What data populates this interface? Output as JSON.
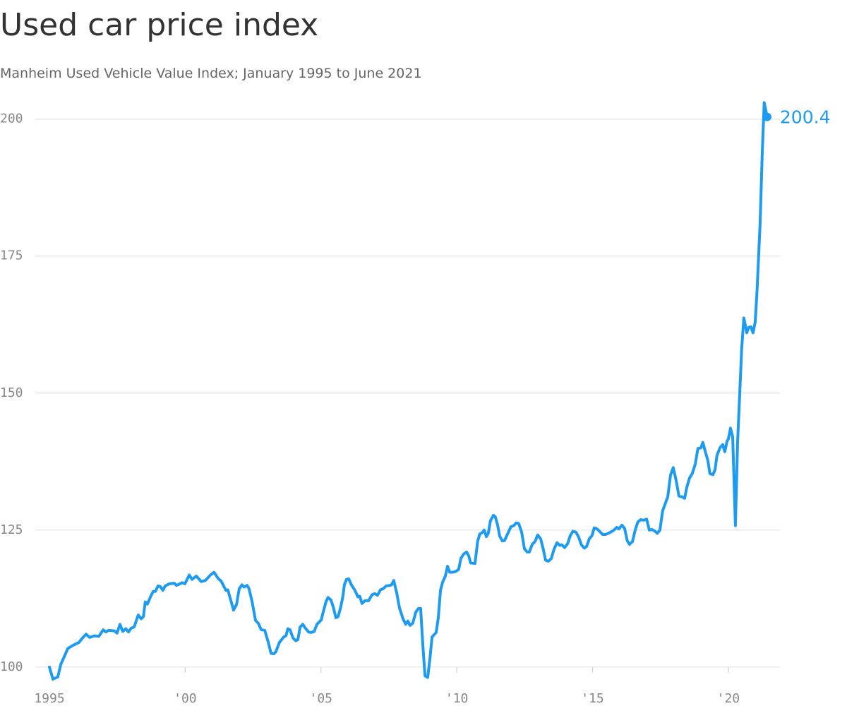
{
  "chart_data": {
    "type": "line",
    "title": "Used car price index",
    "subtitle": "Manheim Used Vehicle Value Index; January 1995 to June 2021",
    "color": "#1d9bf0",
    "grid": true,
    "xlim": [
      1994.48,
      2021.9
    ],
    "ylim": [
      97.4,
      203.7
    ],
    "yticks": [
      100,
      125,
      150,
      175,
      200
    ],
    "xticks": [
      1995,
      {
        "value": 2000,
        "label": "'00"
      },
      {
        "value": 2005,
        "label": "'05"
      },
      {
        "value": 2010,
        "label": "'10"
      },
      {
        "value": 2015,
        "label": "'15"
      },
      {
        "value": 2020,
        "label": "'20"
      }
    ],
    "x": [
      1995.0,
      1995.13,
      1995.31,
      1995.42,
      1995.6,
      1995.68,
      1995.88,
      1996.09,
      1996.2,
      1996.35,
      1996.48,
      1996.66,
      1996.82,
      1996.98,
      1997.08,
      1997.18,
      1997.39,
      1997.49,
      1997.6,
      1997.7,
      1997.81,
      1997.91,
      1998.01,
      1998.12,
      1998.27,
      1998.38,
      1998.46,
      1998.53,
      1998.61,
      1998.72,
      1998.82,
      1998.9,
      1999.0,
      1999.08,
      1999.18,
      1999.26,
      1999.42,
      1999.6,
      1999.68,
      1999.89,
      1999.99,
      2000.15,
      2000.25,
      2000.41,
      2000.59,
      2000.74,
      2000.93,
      2001.06,
      2001.21,
      2001.32,
      2001.5,
      2001.57,
      2001.78,
      2001.89,
      2001.99,
      2002.09,
      2002.17,
      2002.28,
      2002.35,
      2002.46,
      2002.59,
      2002.69,
      2002.8,
      2002.93,
      2003.06,
      2003.16,
      2003.26,
      2003.34,
      2003.47,
      2003.63,
      2003.71,
      2003.78,
      2003.86,
      2003.97,
      2004.07,
      2004.15,
      2004.23,
      2004.33,
      2004.41,
      2004.54,
      2004.64,
      2004.75,
      2004.85,
      2005.01,
      2005.08,
      2005.19,
      2005.26,
      2005.37,
      2005.45,
      2005.55,
      2005.63,
      2005.73,
      2005.81,
      2005.86,
      2005.94,
      2006.02,
      2006.12,
      2006.25,
      2006.36,
      2006.43,
      2006.51,
      2006.62,
      2006.75,
      2006.88,
      2006.98,
      2007.08,
      2007.19,
      2007.29,
      2007.4,
      2007.53,
      2007.6,
      2007.68,
      2007.79,
      2007.89,
      2008.02,
      2008.12,
      2008.2,
      2008.28,
      2008.38,
      2008.49,
      2008.59,
      2008.67,
      2008.75,
      2008.83,
      2008.93,
      2009.01,
      2009.09,
      2009.24,
      2009.32,
      2009.4,
      2009.48,
      2009.58,
      2009.66,
      2009.74,
      2009.84,
      2009.94,
      2010.07,
      2010.15,
      2010.25,
      2010.36,
      2010.44,
      2010.51,
      2010.67,
      2010.77,
      2010.85,
      2010.93,
      2011.01,
      2011.09,
      2011.16,
      2011.24,
      2011.35,
      2011.42,
      2011.5,
      2011.58,
      2011.68,
      2011.76,
      2011.89,
      2011.99,
      2012.1,
      2012.18,
      2012.28,
      2012.39,
      2012.49,
      2012.59,
      2012.67,
      2012.78,
      2012.88,
      2012.98,
      2013.09,
      2013.19,
      2013.27,
      2013.37,
      2013.48,
      2013.58,
      2013.69,
      2013.79,
      2013.87,
      2013.97,
      2014.08,
      2014.18,
      2014.28,
      2014.39,
      2014.49,
      2014.59,
      2014.7,
      2014.78,
      2014.88,
      2014.98,
      2015.06,
      2015.17,
      2015.27,
      2015.37,
      2015.48,
      2015.58,
      2015.69,
      2015.79,
      2015.89,
      2015.97,
      2016.08,
      2016.18,
      2016.28,
      2016.36,
      2016.47,
      2016.57,
      2016.67,
      2016.78,
      2016.88,
      2016.99,
      2017.09,
      2017.19,
      2017.3,
      2017.38,
      2017.48,
      2017.58,
      2017.69,
      2017.77,
      2017.87,
      2017.97,
      2018.08,
      2018.18,
      2018.28,
      2018.39,
      2018.47,
      2018.57,
      2018.67,
      2018.78,
      2018.88,
      2018.99,
      2019.06,
      2019.17,
      2019.25,
      2019.32,
      2019.43,
      2019.51,
      2019.58,
      2019.69,
      2019.79,
      2019.87,
      2019.95,
      2020.0,
      2020.08,
      2020.16,
      2020.26,
      2020.34,
      2020.42,
      2020.49,
      2020.57,
      2020.68,
      2020.75,
      2020.83,
      2020.91,
      2020.99,
      2021.06,
      2021.17,
      2021.25,
      2021.32,
      2021.43
    ],
    "values": [
      100,
      97.8,
      98.2,
      100.5,
      102.5,
      103.4,
      104,
      104.5,
      105.2,
      106,
      105.4,
      105.7,
      105.6,
      106.8,
      106.4,
      106.7,
      106.6,
      106.2,
      107.8,
      106.5,
      107,
      106.4,
      107.1,
      107.3,
      109.5,
      108.8,
      109.2,
      111.9,
      111.5,
      112.8,
      113.8,
      113.8,
      114.8,
      114.7,
      114,
      114.8,
      115.2,
      115.3,
      114.9,
      115.4,
      115.2,
      116.8,
      116,
      116.6,
      115.6,
      115.8,
      116.8,
      117.3,
      116.2,
      115.7,
      114,
      114.1,
      110.4,
      111.4,
      114.3,
      115,
      114.6,
      114.9,
      114.3,
      112,
      108.5,
      108,
      106.8,
      106.7,
      104.5,
      102.5,
      102.4,
      102.8,
      104.5,
      105.5,
      105.7,
      107,
      106.8,
      105.3,
      104.8,
      105,
      107.3,
      107.8,
      107.2,
      106.4,
      106.3,
      106.5,
      107.8,
      108.6,
      110,
      112,
      112.7,
      112.2,
      111,
      109,
      109.2,
      111,
      113,
      115,
      116,
      116.1,
      115,
      114,
      112.8,
      112.9,
      111.6,
      112.1,
      112.1,
      113.2,
      113.4,
      113.1,
      114.1,
      114.3,
      114.8,
      114.9,
      115,
      115.8,
      113.5,
      110.8,
      108.8,
      107.8,
      108.4,
      107.6,
      108,
      110,
      110.7,
      110.7,
      104,
      98.4,
      98.1,
      101.5,
      105.5,
      106.3,
      109,
      114,
      115.5,
      116.6,
      118.4,
      117.3,
      117.3,
      117.4,
      117.8,
      119.8,
      120.6,
      121,
      120.3,
      119,
      118.9,
      123,
      124.3,
      124.5,
      125,
      123.8,
      124.4,
      126.7,
      127.7,
      127.4,
      126,
      123.9,
      123,
      123.1,
      124.5,
      125.6,
      125.8,
      126.3,
      126.2,
      124.6,
      121.6,
      121,
      121,
      122.4,
      122.9,
      124.1,
      123.4,
      121.4,
      119.5,
      119.3,
      119.8,
      121.5,
      122.7,
      122.2,
      122.3,
      121.8,
      122.5,
      124,
      124.8,
      124.6,
      123.7,
      122.3,
      121.7,
      122,
      123.4,
      124,
      125.4,
      125.2,
      124.7,
      124.2,
      124.2,
      124.4,
      124.7,
      125,
      125.5,
      125.2,
      125.9,
      125.3,
      123,
      122.4,
      122.9,
      125,
      126.5,
      126.9,
      126.8,
      127,
      125,
      125.1,
      124.8,
      124.4,
      125,
      128.5,
      130,
      131.1,
      135,
      136.4,
      134,
      131.2,
      131.1,
      130.8,
      132.8,
      134.5,
      135.3,
      137,
      139.9,
      140,
      141,
      139,
      137.6,
      135.3,
      135.1,
      136,
      138.6,
      140,
      140.6,
      139.3,
      141.2,
      141.6,
      143.6,
      142,
      125.8,
      141,
      150,
      158,
      163.7,
      161,
      162,
      162.1,
      161,
      163,
      169,
      181,
      194,
      203,
      200.4
    ]
  }
}
